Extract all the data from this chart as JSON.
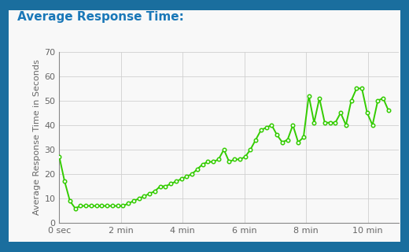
{
  "title": "Average Response Time:",
  "ylabel": "Average Response Time in Seconds",
  "background_color": "#f8f8f8",
  "outer_background": "#1a6e9e",
  "line_color": "#33cc00",
  "marker_color": "#33cc00",
  "title_color": "#1a78b8",
  "ylim": [
    0,
    70
  ],
  "yticks": [
    0,
    10,
    20,
    30,
    40,
    50,
    60,
    70
  ],
  "xtick_labels": [
    "0 sec",
    "2 min",
    "4 min",
    "6 min",
    "8 min",
    "10 min"
  ],
  "xtick_positions": [
    0,
    2,
    4,
    6,
    8,
    10
  ],
  "x_values": [
    0.0,
    0.172,
    0.344,
    0.516,
    0.688,
    0.86,
    1.032,
    1.204,
    1.376,
    1.548,
    1.72,
    1.892,
    2.064,
    2.236,
    2.408,
    2.58,
    2.752,
    2.924,
    3.096,
    3.268,
    3.44,
    3.612,
    3.784,
    3.956,
    4.128,
    4.3,
    4.472,
    4.644,
    4.816,
    4.988,
    5.16,
    5.332,
    5.504,
    5.676,
    5.848,
    6.02,
    6.192,
    6.364,
    6.536,
    6.708,
    6.88,
    7.052,
    7.224,
    7.396,
    7.568,
    7.74,
    7.912,
    8.084,
    8.256,
    8.428,
    8.6,
    8.772,
    8.944,
    9.116,
    9.288,
    9.46,
    9.632,
    9.804,
    9.976,
    10.148,
    10.32,
    10.492,
    10.664
  ],
  "y_values": [
    27,
    17,
    9,
    6,
    7,
    7,
    7,
    7,
    7,
    7,
    7,
    7,
    7,
    8,
    9,
    10,
    11,
    12,
    13,
    15,
    15,
    16,
    17,
    18,
    19,
    20,
    22,
    24,
    25,
    25,
    26,
    30,
    25,
    26,
    26,
    27,
    30,
    34,
    38,
    39,
    40,
    36,
    33,
    34,
    40,
    33,
    35,
    52,
    41,
    51,
    41,
    41,
    41,
    45,
    40,
    50,
    55,
    55,
    45,
    40,
    50,
    51,
    46
  ],
  "grid_color": "#d0d0d0",
  "title_fontsize": 11,
  "axis_label_fontsize": 8,
  "tick_fontsize": 8
}
